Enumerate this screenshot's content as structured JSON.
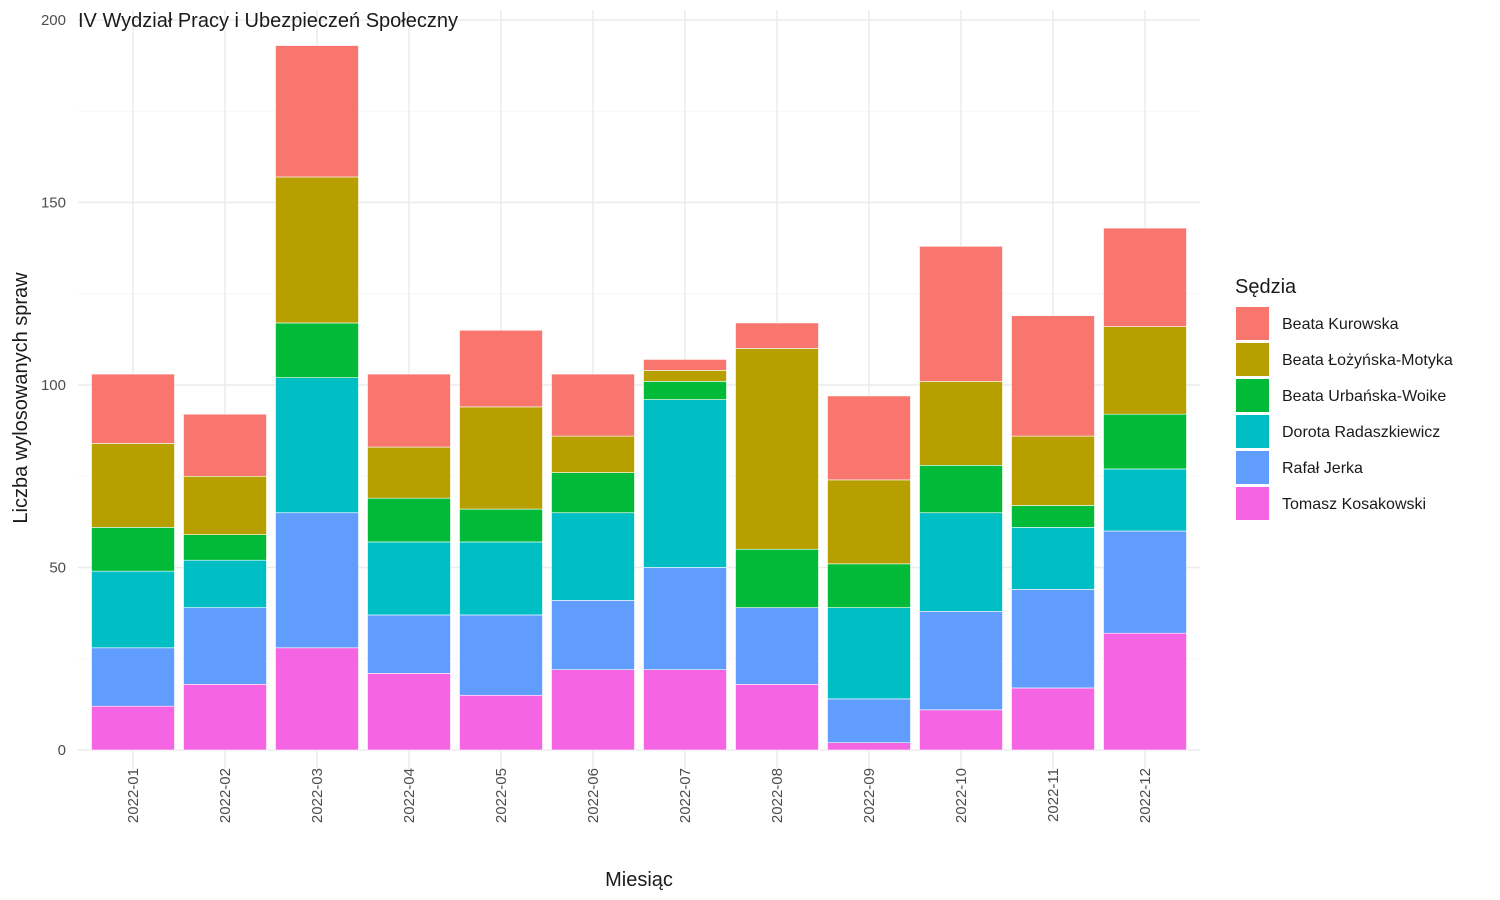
{
  "chart_data": {
    "type": "bar",
    "stacked": true,
    "title": "IV Wydział Pracy i Ubezpieczeń Społeczny",
    "xlabel": "Miesiąc",
    "ylabel": "Liczba wylosowanych spraw",
    "ylim": [
      0,
      200
    ],
    "yticks": [
      0,
      50,
      100,
      150,
      200
    ],
    "grid": true,
    "legend_title": "Sędzia",
    "legend_position": "right",
    "categories": [
      "2022-01",
      "2022-02",
      "2022-03",
      "2022-04",
      "2022-05",
      "2022-06",
      "2022-07",
      "2022-08",
      "2022-09",
      "2022-10",
      "2022-11",
      "2022-12"
    ],
    "series": [
      {
        "name": "Beata Kurowska",
        "color": "#F8766D",
        "values": [
          19,
          17,
          36,
          20,
          21,
          17,
          3,
          7,
          23,
          37,
          33,
          27
        ]
      },
      {
        "name": "Beata Łożyńska-Motyka",
        "color": "#B79F00",
        "values": [
          23,
          16,
          40,
          14,
          28,
          10,
          3,
          55,
          23,
          23,
          19,
          24
        ]
      },
      {
        "name": "Beata Urbańska-Woike",
        "color": "#00BA38",
        "values": [
          12,
          7,
          15,
          12,
          9,
          11,
          5,
          16,
          12,
          13,
          6,
          15
        ]
      },
      {
        "name": "Dorota Radaszkiewicz",
        "color": "#00BFC4",
        "values": [
          21,
          13,
          37,
          20,
          20,
          24,
          46,
          0,
          25,
          27,
          17,
          17
        ]
      },
      {
        "name": "Rafał Jerka",
        "color": "#619CFF",
        "values": [
          16,
          21,
          37,
          16,
          22,
          19,
          28,
          21,
          12,
          27,
          27,
          28
        ]
      },
      {
        "name": "Tomasz Kosakowski",
        "color": "#F564E3",
        "values": [
          12,
          18,
          28,
          21,
          15,
          22,
          22,
          18,
          2,
          11,
          17,
          32
        ]
      }
    ]
  }
}
